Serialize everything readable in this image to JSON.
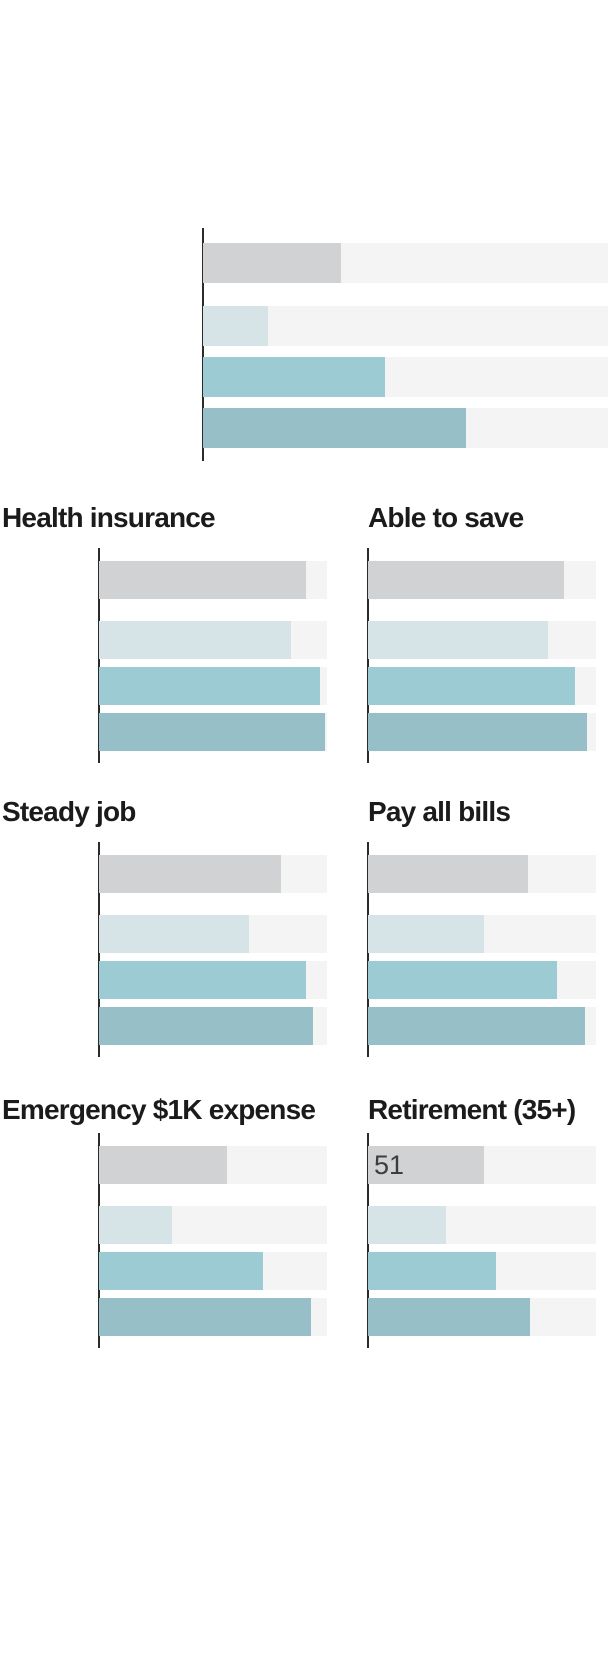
{
  "chart_data": {
    "type": "bar",
    "orientation": "horizontal",
    "layout": "small multiples, 1 wide untitled chart on top + 2x3 grid of titled panels",
    "axis_range": [
      0,
      100
    ],
    "gridlines": false,
    "legend": "none visible in cropped image",
    "series_order": [
      "gray",
      "pale_teal",
      "medium_teal",
      "dark_teal"
    ],
    "bars_per_panel": 4,
    "panels": [
      {
        "title": "",
        "values": [
          34,
          16,
          45,
          65
        ],
        "note": "untitled top chart; bar tracks run to the right image edge (cut off)"
      },
      {
        "title": "Health insurance",
        "values": [
          91,
          84,
          97,
          99
        ]
      },
      {
        "title": "Able to save",
        "values": [
          86,
          79,
          91,
          96
        ]
      },
      {
        "title": "Steady job",
        "values": [
          80,
          66,
          91,
          94
        ]
      },
      {
        "title": "Pay all bills",
        "values": [
          70,
          51,
          83,
          95
        ]
      },
      {
        "title": "Emergency $1K expense",
        "values": [
          56,
          32,
          72,
          93
        ]
      },
      {
        "title": "Retirement (35+)",
        "values": [
          51,
          34,
          56,
          71
        ],
        "data_label": {
          "bar_index": 0,
          "text": "51"
        }
      }
    ]
  },
  "colors": {
    "bar_gray": "#d1d2d4",
    "bar_pale_teal": "#d6e4e8",
    "bar_medium_teal": "#9dcbd3",
    "bar_dark_teal": "#97bfc8",
    "track": "#f4f4f5",
    "axis": "#2b2b2b",
    "title_text": "#1b1b1b",
    "label_text": "#3d3d3d",
    "background": "#ffffff"
  }
}
